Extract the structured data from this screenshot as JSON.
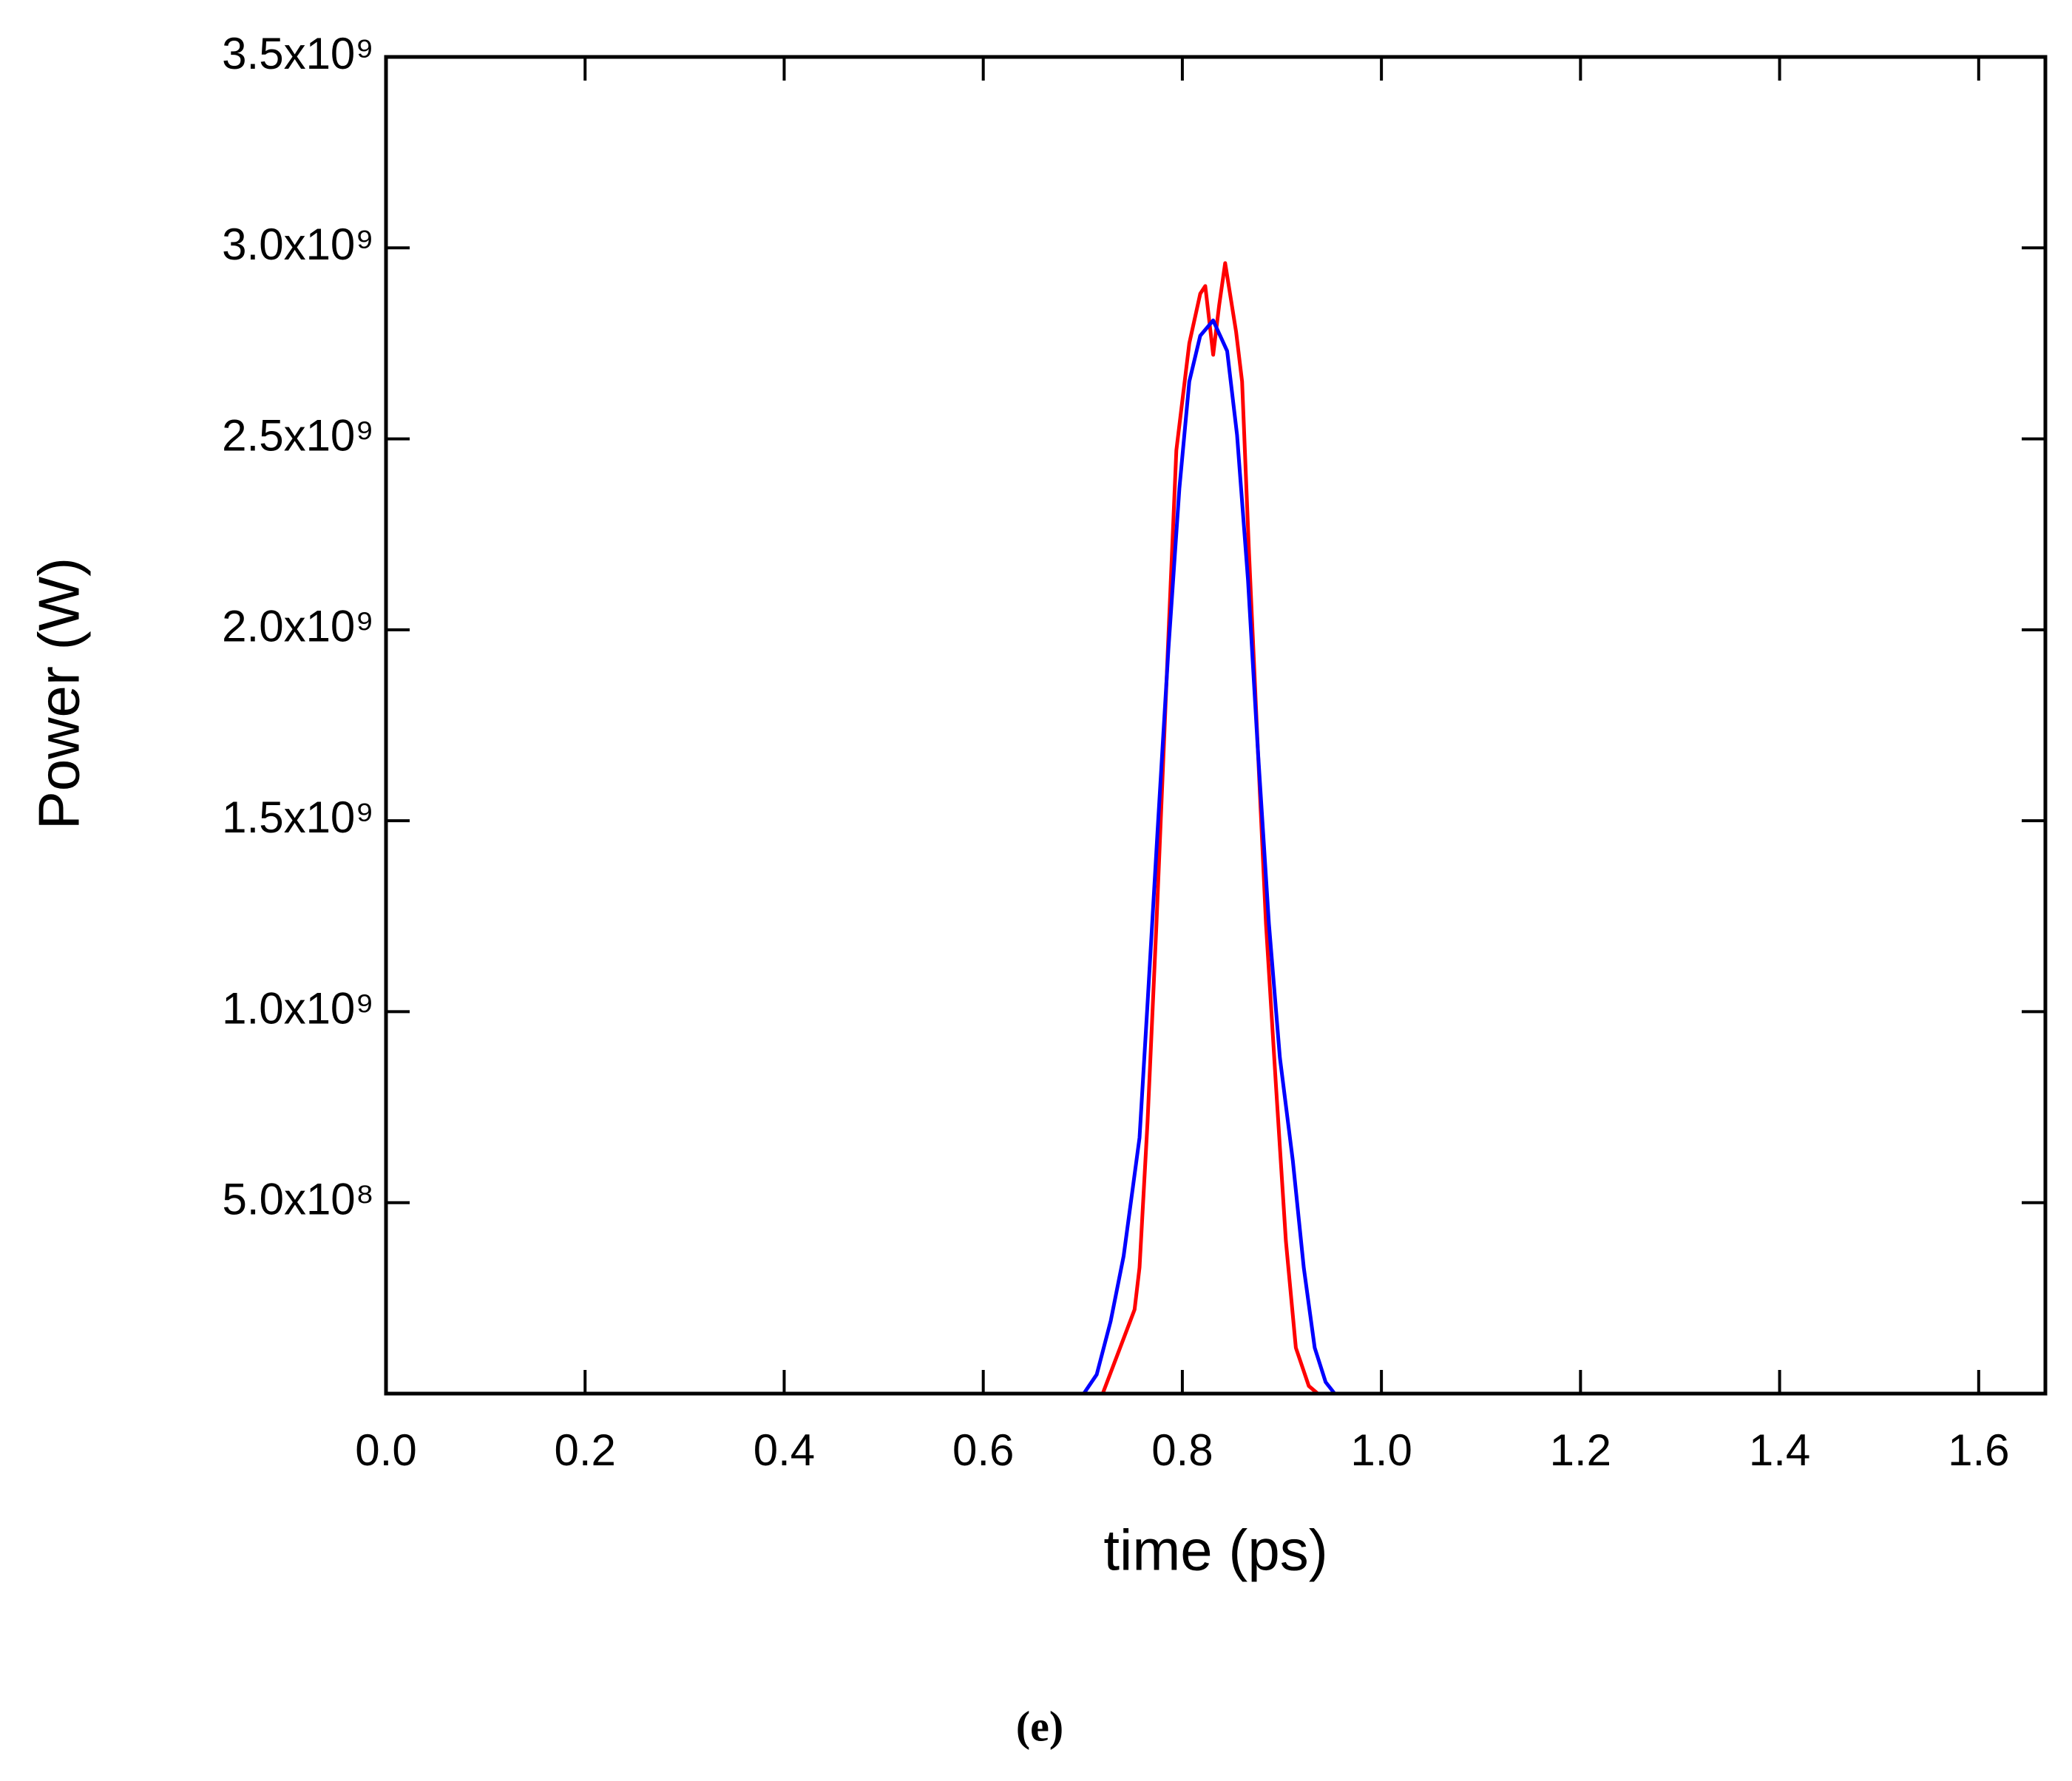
{
  "chart_data": {
    "type": "line",
    "xlabel": "time (ps)",
    "ylabel": "Power (W)",
    "caption": "(e)",
    "xlim": [
      0,
      1.667
    ],
    "ylim": [
      0,
      3500000000
    ],
    "xticks": [
      {
        "value": 0,
        "label": "0.0"
      },
      0.2,
      0.4,
      0.6,
      0.8,
      {
        "value": 1,
        "label": "1.0"
      },
      1.2,
      1.4,
      1.6
    ],
    "yticks": [
      {
        "value": 500000000,
        "label": "5.0x10⁸"
      },
      {
        "value": 1000000000,
        "label": "1.0x10⁹"
      },
      {
        "value": 1500000000,
        "label": "1.5x10⁹"
      },
      {
        "value": 2000000000,
        "label": "2.0x10⁹"
      },
      {
        "value": 2500000000,
        "label": "2.5x10⁹"
      },
      {
        "value": 3000000000,
        "label": "3.0x10⁹"
      },
      {
        "value": 3500000000,
        "label": "3.5x10⁹"
      }
    ],
    "series": [
      {
        "color": "#ff0000",
        "x": [
          0,
          0.72,
          0.752,
          0.757,
          0.765,
          0.774,
          0.785,
          0.794,
          0.807,
          0.818,
          0.823,
          0.831,
          0.837,
          0.843,
          0.854,
          0.86,
          0.867,
          0.876,
          0.884,
          0.894,
          0.904,
          0.914,
          0.927,
          0.936,
          1.667
        ],
        "values": [
          0,
          0,
          220000000,
          330000000,
          710000000,
          1230000000,
          1920000000,
          2470000000,
          2750000000,
          2880000000,
          2900000000,
          2720000000,
          2850000000,
          2960000000,
          2780000000,
          2650000000,
          2200000000,
          1680000000,
          1230000000,
          810000000,
          400000000,
          120000000,
          20000000,
          0,
          0
        ]
      },
      {
        "color": "#0000ff",
        "x": [
          0,
          0.701,
          0.714,
          0.728,
          0.741,
          0.757,
          0.765,
          0.775,
          0.786,
          0.797,
          0.807,
          0.818,
          0.831,
          0.845,
          0.855,
          0.866,
          0.876,
          0.887,
          0.898,
          0.911,
          0.922,
          0.933,
          0.944,
          0.953,
          1.667
        ],
        "values": [
          0,
          0,
          50000000,
          190000000,
          360000000,
          670000000,
          1020000000,
          1470000000,
          1950000000,
          2370000000,
          2650000000,
          2770000000,
          2810000000,
          2730000000,
          2510000000,
          2130000000,
          1680000000,
          1230000000,
          880000000,
          610000000,
          330000000,
          120000000,
          30000000,
          0,
          0
        ]
      }
    ]
  }
}
